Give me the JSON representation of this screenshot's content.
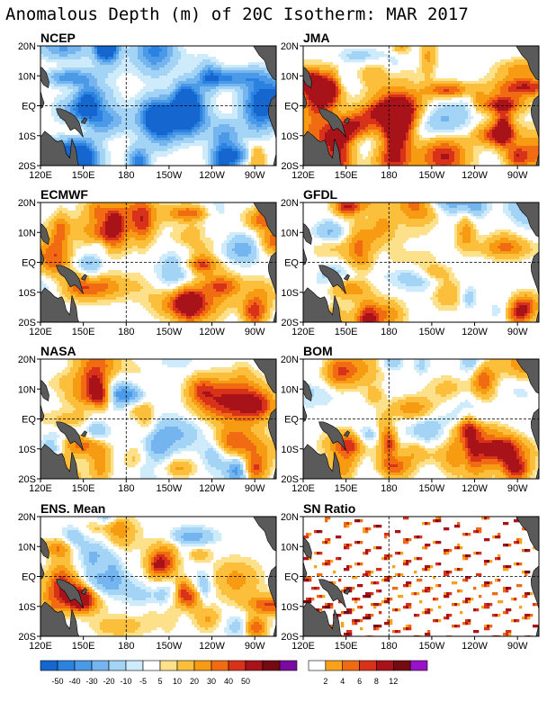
{
  "chart_data": {
    "type": "heatmap",
    "title": "Anomalous Depth (m) of 20C Isotherm: MAR 2017",
    "xticks": [
      "120E",
      "150E",
      "180",
      "150W",
      "120W",
      "90W"
    ],
    "yticks": [
      "20N",
      "10N",
      "EQ",
      "10S",
      "20S"
    ],
    "xlim_deg_east": [
      120,
      285
    ],
    "ylim_deg_north": [
      -20,
      20
    ],
    "land_color": "#5a5a5a",
    "panels": [
      {
        "title": "NCEP",
        "seed": 11,
        "bias": -0.35
      },
      {
        "title": "JMA",
        "seed": 23,
        "bias": 0.25
      },
      {
        "title": "ECMWF",
        "seed": 37,
        "bias": 0.1
      },
      {
        "title": "GFDL",
        "seed": 41,
        "bias": 0.1
      },
      {
        "title": "NASA",
        "seed": 53,
        "bias": 0.05
      },
      {
        "title": "BOM",
        "seed": 67,
        "bias": 0.15
      },
      {
        "title": "ENS. Mean",
        "seed": 79,
        "bias": 0.1
      },
      {
        "title": "SN Ratio",
        "seed": 97,
        "bias": 0.0,
        "ratio": true
      }
    ],
    "anomaly_colorbar": {
      "levels": [
        "-50",
        "-40",
        "-30",
        "-20",
        "-10",
        "-5",
        "5",
        "10",
        "20",
        "30",
        "40",
        "50"
      ],
      "colors": [
        "#1666d0",
        "#2b82e0",
        "#4a9ae8",
        "#74b5ef",
        "#a3d3f5",
        "#cdebfb",
        "#ffffff",
        "#fce08a",
        "#fbbf3c",
        "#f79b12",
        "#f06b12",
        "#d8321a",
        "#a8131a",
        "#760a12",
        "#7a0aa0"
      ]
    },
    "ratio_colorbar": {
      "levels": [
        "2",
        "4",
        "6",
        "8",
        "12"
      ],
      "colors": [
        "#ffffff",
        "#f7a21a",
        "#f06a12",
        "#d8321a",
        "#a8131a",
        "#760a12",
        "#9a12c8"
      ]
    }
  }
}
